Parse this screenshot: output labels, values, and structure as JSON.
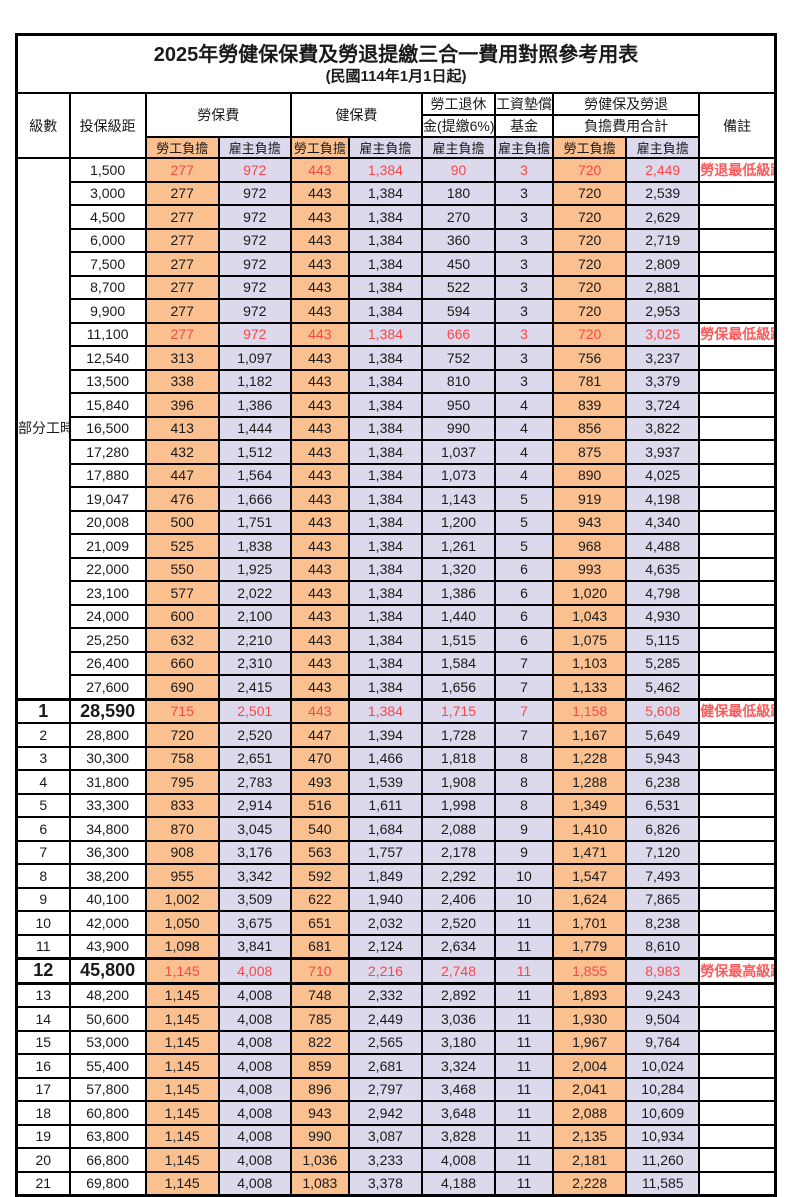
{
  "title": "2025年勞健保保費及勞退提繳三合一費用對照參考用表",
  "subtitle": "(民國114年1月1日起)",
  "colors": {
    "employee_col_bg": "#FAC090",
    "employer_col_bg": "#DDD9EC",
    "highlight_red": "#F94747",
    "remark_red": "#FB5B5B",
    "border": "#000000"
  },
  "header": {
    "level": "級數",
    "bracket": "投保級距",
    "labor_ins": "勞保費",
    "health_ins": "健保費",
    "pension_line1": "勞工退休",
    "pension_line2": "金(提繳6%)",
    "wage_fund_line1": "工資墊償",
    "wage_fund_line2": "基金",
    "total_line1": "勞健保及勞退",
    "total_line2": "負擔費用合計",
    "remark": "備註",
    "employee_share": "勞工負擔",
    "employer_share": "雇主負擔"
  },
  "part_time_label": "部分工時",
  "rows": [
    {
      "lv": "",
      "amt": "1,500",
      "v": [
        "277",
        "972",
        "443",
        "1,384",
        "90",
        "3",
        "720",
        "2,449"
      ],
      "note": "勞退最低級距",
      "red": true,
      "big": false
    },
    {
      "lv": "",
      "amt": "3,000",
      "v": [
        "277",
        "972",
        "443",
        "1,384",
        "180",
        "3",
        "720",
        "2,539"
      ],
      "note": "",
      "red": false,
      "big": false
    },
    {
      "lv": "",
      "amt": "4,500",
      "v": [
        "277",
        "972",
        "443",
        "1,384",
        "270",
        "3",
        "720",
        "2,629"
      ],
      "note": "",
      "red": false,
      "big": false
    },
    {
      "lv": "",
      "amt": "6,000",
      "v": [
        "277",
        "972",
        "443",
        "1,384",
        "360",
        "3",
        "720",
        "2,719"
      ],
      "note": "",
      "red": false,
      "big": false
    },
    {
      "lv": "",
      "amt": "7,500",
      "v": [
        "277",
        "972",
        "443",
        "1,384",
        "450",
        "3",
        "720",
        "2,809"
      ],
      "note": "",
      "red": false,
      "big": false
    },
    {
      "lv": "",
      "amt": "8,700",
      "v": [
        "277",
        "972",
        "443",
        "1,384",
        "522",
        "3",
        "720",
        "2,881"
      ],
      "note": "",
      "red": false,
      "big": false
    },
    {
      "lv": "",
      "amt": "9,900",
      "v": [
        "277",
        "972",
        "443",
        "1,384",
        "594",
        "3",
        "720",
        "2,953"
      ],
      "note": "",
      "red": false,
      "big": false
    },
    {
      "lv": "",
      "amt": "11,100",
      "v": [
        "277",
        "972",
        "443",
        "1,384",
        "666",
        "3",
        "720",
        "3,025"
      ],
      "note": "勞保最低級距",
      "red": true,
      "big": false
    },
    {
      "lv": "",
      "amt": "12,540",
      "v": [
        "313",
        "1,097",
        "443",
        "1,384",
        "752",
        "3",
        "756",
        "3,237"
      ],
      "note": "",
      "red": false,
      "big": false
    },
    {
      "lv": "",
      "amt": "13,500",
      "v": [
        "338",
        "1,182",
        "443",
        "1,384",
        "810",
        "3",
        "781",
        "3,379"
      ],
      "note": "",
      "red": false,
      "big": false
    },
    {
      "lv": "",
      "amt": "15,840",
      "v": [
        "396",
        "1,386",
        "443",
        "1,384",
        "950",
        "4",
        "839",
        "3,724"
      ],
      "note": "",
      "red": false,
      "big": false
    },
    {
      "lv": "",
      "amt": "16,500",
      "v": [
        "413",
        "1,444",
        "443",
        "1,384",
        "990",
        "4",
        "856",
        "3,822"
      ],
      "note": "",
      "red": false,
      "big": false
    },
    {
      "lv": "",
      "amt": "17,280",
      "v": [
        "432",
        "1,512",
        "443",
        "1,384",
        "1,037",
        "4",
        "875",
        "3,937"
      ],
      "note": "",
      "red": false,
      "big": false
    },
    {
      "lv": "",
      "amt": "17,880",
      "v": [
        "447",
        "1,564",
        "443",
        "1,384",
        "1,073",
        "4",
        "890",
        "4,025"
      ],
      "note": "",
      "red": false,
      "big": false
    },
    {
      "lv": "",
      "amt": "19,047",
      "v": [
        "476",
        "1,666",
        "443",
        "1,384",
        "1,143",
        "5",
        "919",
        "4,198"
      ],
      "note": "",
      "red": false,
      "big": false
    },
    {
      "lv": "",
      "amt": "20,008",
      "v": [
        "500",
        "1,751",
        "443",
        "1,384",
        "1,200",
        "5",
        "943",
        "4,340"
      ],
      "note": "",
      "red": false,
      "big": false
    },
    {
      "lv": "",
      "amt": "21,009",
      "v": [
        "525",
        "1,838",
        "443",
        "1,384",
        "1,261",
        "5",
        "968",
        "4,488"
      ],
      "note": "",
      "red": false,
      "big": false
    },
    {
      "lv": "",
      "amt": "22,000",
      "v": [
        "550",
        "1,925",
        "443",
        "1,384",
        "1,320",
        "6",
        "993",
        "4,635"
      ],
      "note": "",
      "red": false,
      "big": false
    },
    {
      "lv": "",
      "amt": "23,100",
      "v": [
        "577",
        "2,022",
        "443",
        "1,384",
        "1,386",
        "6",
        "1,020",
        "4,798"
      ],
      "note": "",
      "red": false,
      "big": false
    },
    {
      "lv": "",
      "amt": "24,000",
      "v": [
        "600",
        "2,100",
        "443",
        "1,384",
        "1,440",
        "6",
        "1,043",
        "4,930"
      ],
      "note": "",
      "red": false,
      "big": false
    },
    {
      "lv": "",
      "amt": "25,250",
      "v": [
        "632",
        "2,210",
        "443",
        "1,384",
        "1,515",
        "6",
        "1,075",
        "5,115"
      ],
      "note": "",
      "red": false,
      "big": false
    },
    {
      "lv": "",
      "amt": "26,400",
      "v": [
        "660",
        "2,310",
        "443",
        "1,384",
        "1,584",
        "7",
        "1,103",
        "5,285"
      ],
      "note": "",
      "red": false,
      "big": false
    },
    {
      "lv": "",
      "amt": "27,600",
      "v": [
        "690",
        "2,415",
        "443",
        "1,384",
        "1,656",
        "7",
        "1,133",
        "5,462"
      ],
      "note": "",
      "red": false,
      "big": false
    },
    {
      "lv": "1",
      "amt": "28,590",
      "v": [
        "715",
        "2,501",
        "443",
        "1,384",
        "1,715",
        "7",
        "1,158",
        "5,608"
      ],
      "note": "健保最低級距",
      "red": true,
      "big": true,
      "thickTop": true
    },
    {
      "lv": "2",
      "amt": "28,800",
      "v": [
        "720",
        "2,520",
        "447",
        "1,394",
        "1,728",
        "7",
        "1,167",
        "5,649"
      ],
      "note": "",
      "red": false,
      "big": false
    },
    {
      "lv": "3",
      "amt": "30,300",
      "v": [
        "758",
        "2,651",
        "470",
        "1,466",
        "1,818",
        "8",
        "1,228",
        "5,943"
      ],
      "note": "",
      "red": false,
      "big": false
    },
    {
      "lv": "4",
      "amt": "31,800",
      "v": [
        "795",
        "2,783",
        "493",
        "1,539",
        "1,908",
        "8",
        "1,288",
        "6,238"
      ],
      "note": "",
      "red": false,
      "big": false
    },
    {
      "lv": "5",
      "amt": "33,300",
      "v": [
        "833",
        "2,914",
        "516",
        "1,611",
        "1,998",
        "8",
        "1,349",
        "6,531"
      ],
      "note": "",
      "red": false,
      "big": false
    },
    {
      "lv": "6",
      "amt": "34,800",
      "v": [
        "870",
        "3,045",
        "540",
        "1,684",
        "2,088",
        "9",
        "1,410",
        "6,826"
      ],
      "note": "",
      "red": false,
      "big": false
    },
    {
      "lv": "7",
      "amt": "36,300",
      "v": [
        "908",
        "3,176",
        "563",
        "1,757",
        "2,178",
        "9",
        "1,471",
        "7,120"
      ],
      "note": "",
      "red": false,
      "big": false
    },
    {
      "lv": "8",
      "amt": "38,200",
      "v": [
        "955",
        "3,342",
        "592",
        "1,849",
        "2,292",
        "10",
        "1,547",
        "7,493"
      ],
      "note": "",
      "red": false,
      "big": false
    },
    {
      "lv": "9",
      "amt": "40,100",
      "v": [
        "1,002",
        "3,509",
        "622",
        "1,940",
        "2,406",
        "10",
        "1,624",
        "7,865"
      ],
      "note": "",
      "red": false,
      "big": false
    },
    {
      "lv": "10",
      "amt": "42,000",
      "v": [
        "1,050",
        "3,675",
        "651",
        "2,032",
        "2,520",
        "11",
        "1,701",
        "8,238"
      ],
      "note": "",
      "red": false,
      "big": false
    },
    {
      "lv": "11",
      "amt": "43,900",
      "v": [
        "1,098",
        "3,841",
        "681",
        "2,124",
        "2,634",
        "11",
        "1,779",
        "8,610"
      ],
      "note": "",
      "red": false,
      "big": false
    },
    {
      "lv": "12",
      "amt": "45,800",
      "v": [
        "1,145",
        "4,008",
        "710",
        "2,216",
        "2,748",
        "11",
        "1,855",
        "8,983"
      ],
      "note": "勞保最高級距",
      "red": true,
      "big": true,
      "thickTop": true,
      "thickBottom": true
    },
    {
      "lv": "13",
      "amt": "48,200",
      "v": [
        "1,145",
        "4,008",
        "748",
        "2,332",
        "2,892",
        "11",
        "1,893",
        "9,243"
      ],
      "note": "",
      "red": false,
      "big": false
    },
    {
      "lv": "14",
      "amt": "50,600",
      "v": [
        "1,145",
        "4,008",
        "785",
        "2,449",
        "3,036",
        "11",
        "1,930",
        "9,504"
      ],
      "note": "",
      "red": false,
      "big": false
    },
    {
      "lv": "15",
      "amt": "53,000",
      "v": [
        "1,145",
        "4,008",
        "822",
        "2,565",
        "3,180",
        "11",
        "1,967",
        "9,764"
      ],
      "note": "",
      "red": false,
      "big": false
    },
    {
      "lv": "16",
      "amt": "55,400",
      "v": [
        "1,145",
        "4,008",
        "859",
        "2,681",
        "3,324",
        "11",
        "2,004",
        "10,024"
      ],
      "note": "",
      "red": false,
      "big": false
    },
    {
      "lv": "17",
      "amt": "57,800",
      "v": [
        "1,145",
        "4,008",
        "896",
        "2,797",
        "3,468",
        "11",
        "2,041",
        "10,284"
      ],
      "note": "",
      "red": false,
      "big": false
    },
    {
      "lv": "18",
      "amt": "60,800",
      "v": [
        "1,145",
        "4,008",
        "943",
        "2,942",
        "3,648",
        "11",
        "2,088",
        "10,609"
      ],
      "note": "",
      "red": false,
      "big": false
    },
    {
      "lv": "19",
      "amt": "63,800",
      "v": [
        "1,145",
        "4,008",
        "990",
        "3,087",
        "3,828",
        "11",
        "2,135",
        "10,934"
      ],
      "note": "",
      "red": false,
      "big": false
    },
    {
      "lv": "20",
      "amt": "66,800",
      "v": [
        "1,145",
        "4,008",
        "1,036",
        "3,233",
        "4,008",
        "11",
        "2,181",
        "11,260"
      ],
      "note": "",
      "red": false,
      "big": false
    },
    {
      "lv": "21",
      "amt": "69,800",
      "v": [
        "1,145",
        "4,008",
        "1,083",
        "3,378",
        "4,188",
        "11",
        "2,228",
        "11,585"
      ],
      "note": "",
      "red": false,
      "big": false
    }
  ]
}
